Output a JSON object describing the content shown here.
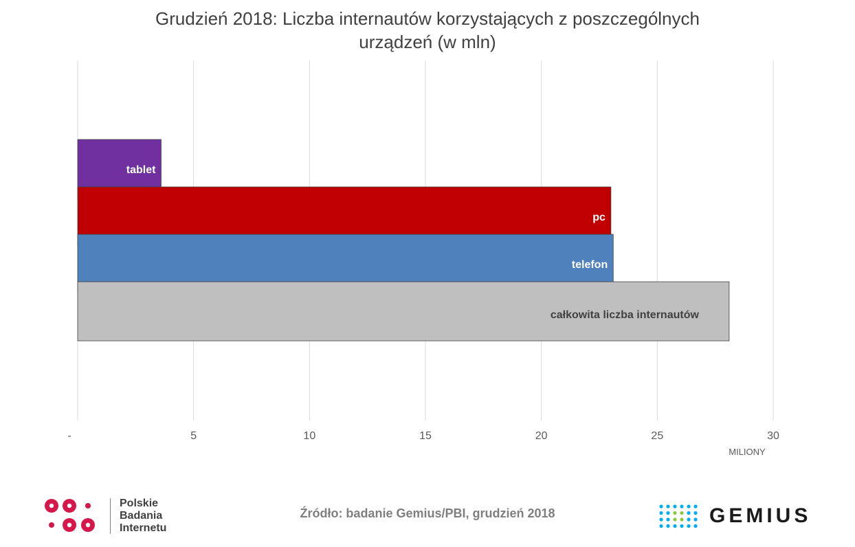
{
  "title_lines": [
    "Grudzień 2018: Liczba internautów korzystających z poszczególnych",
    "urządzeń (w mln)"
  ],
  "chart_data": {
    "type": "bar",
    "orientation": "horizontal",
    "title": "Grudzień 2018: Liczba internautów korzystających z poszczególnych urządzeń (w mln)",
    "xlabel": "MILIONY",
    "ylabel": "",
    "xlim": [
      0,
      30
    ],
    "x_ticks": [
      0,
      5,
      10,
      15,
      20,
      25,
      30
    ],
    "x_tick_labels": [
      "-",
      "5",
      "10",
      "15",
      "20",
      "25",
      "30"
    ],
    "grid": "vertical",
    "categories": [
      "tablet",
      "pc",
      "telefon",
      "całkowita liczba internautów"
    ],
    "values": [
      3.6,
      23.0,
      23.1,
      28.1
    ],
    "colors": [
      "#7030a0",
      "#c00000",
      "#4f81bd",
      "#bfbfbf"
    ],
    "label_colors": [
      "#ffffff",
      "#ffffff",
      "#ffffff",
      "#404040"
    ],
    "bars_overlap": true
  },
  "footer": {
    "source": "Źródło: badanie Gemius/PBI, grudzień 2018",
    "pbi_logo_lines": [
      "Polskie",
      "Badania",
      "Internetu"
    ],
    "pbi_color": "#d6174b",
    "gemius_wordmark": "GEMIUS",
    "gemius_dot_colors": [
      "#00aeef",
      "#8dc63f"
    ]
  }
}
